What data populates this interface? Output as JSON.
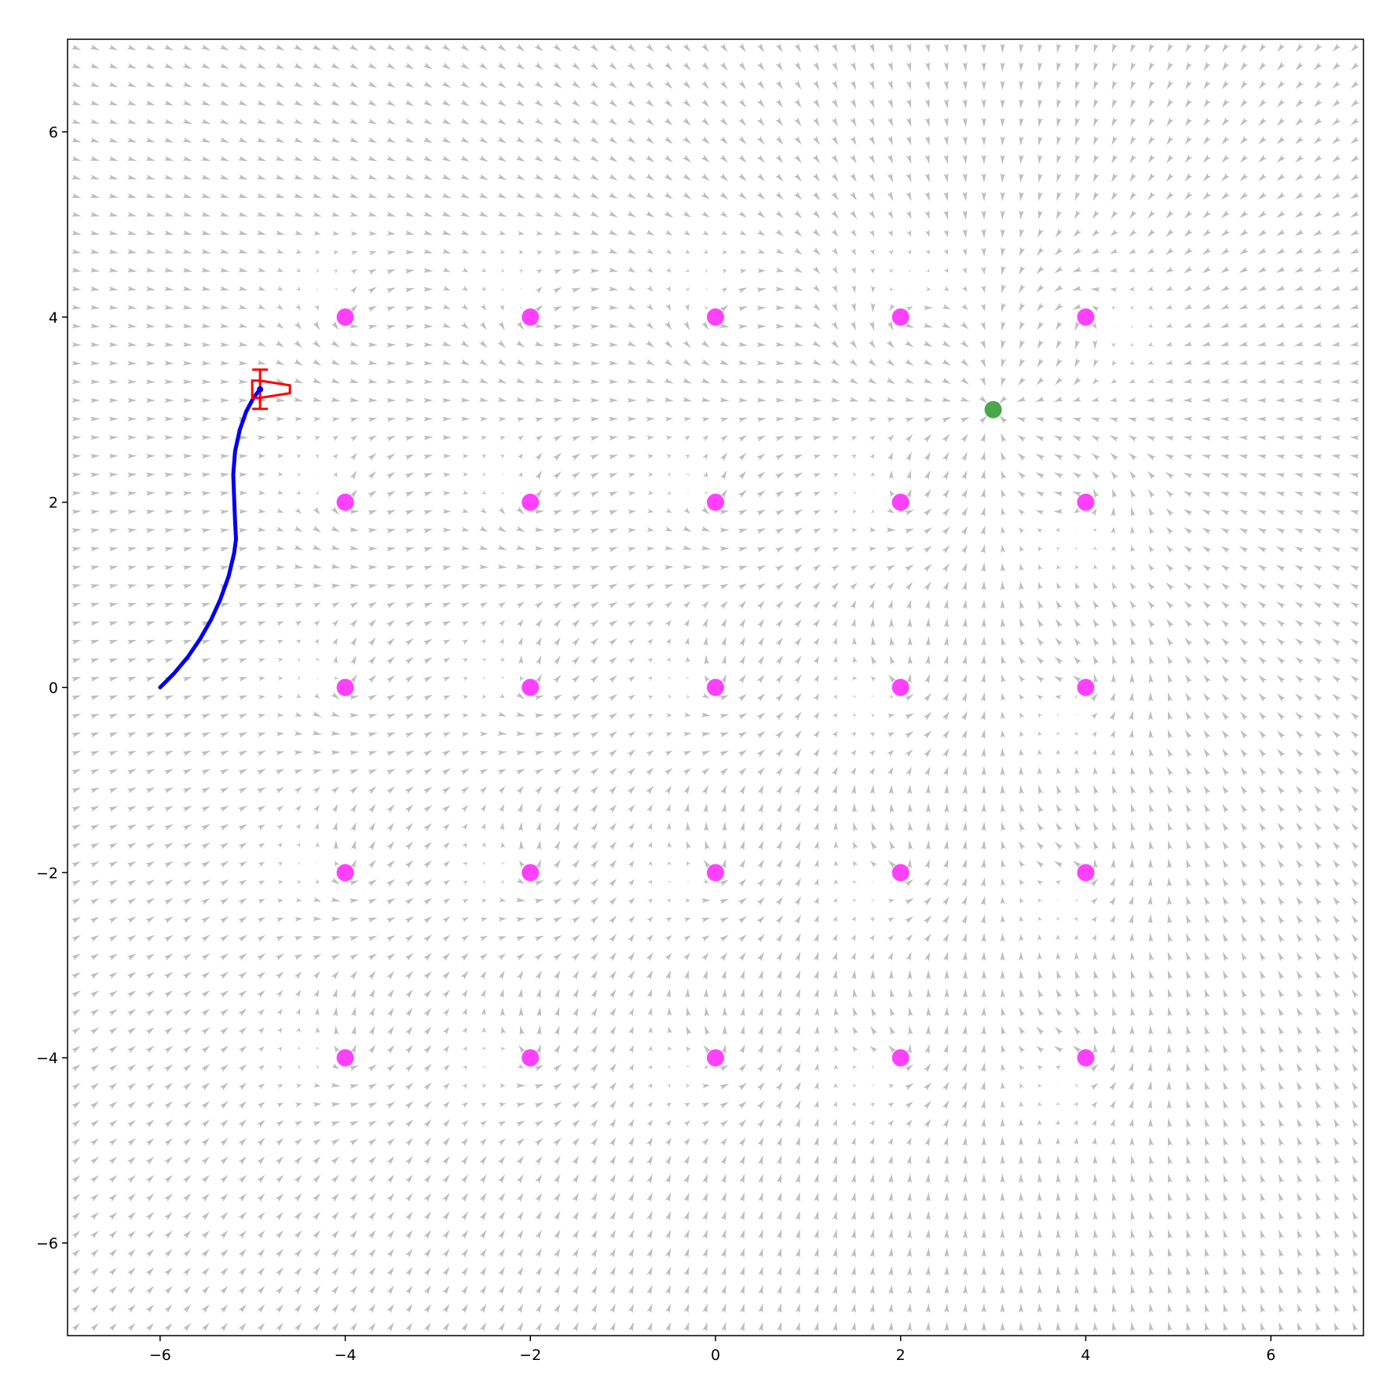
{
  "chart_data": {
    "type": "scatter",
    "title": "",
    "xlabel": "",
    "ylabel": "",
    "xlim": [
      -7,
      7
    ],
    "ylim": [
      -7,
      7
    ],
    "grid": false,
    "xticks": [
      -6,
      -4,
      -2,
      0,
      2,
      4,
      6
    ],
    "yticks": [
      -6,
      -4,
      -2,
      0,
      2,
      4,
      6
    ],
    "xtick_labels": [
      "−6",
      "−4",
      "−2",
      "0",
      "2",
      "4",
      "6"
    ],
    "ytick_labels": [
      "−6",
      "−4",
      "−2",
      "0",
      "2",
      "4",
      "6"
    ],
    "obstacles": {
      "color": "#ff40ff",
      "points": [
        [
          -4,
          4
        ],
        [
          -2,
          4
        ],
        [
          0,
          4
        ],
        [
          2,
          4
        ],
        [
          4,
          4
        ],
        [
          -4,
          2
        ],
        [
          -2,
          2
        ],
        [
          0,
          2
        ],
        [
          2,
          2
        ],
        [
          4,
          2
        ],
        [
          -4,
          0
        ],
        [
          -2,
          0
        ],
        [
          0,
          0
        ],
        [
          2,
          0
        ],
        [
          4,
          0
        ],
        [
          -4,
          -2
        ],
        [
          -2,
          -2
        ],
        [
          0,
          -2
        ],
        [
          2,
          -2
        ],
        [
          4,
          -2
        ],
        [
          -4,
          -4
        ],
        [
          -2,
          -4
        ],
        [
          0,
          -4
        ],
        [
          2,
          -4
        ],
        [
          4,
          -4
        ]
      ]
    },
    "goal": {
      "color": "#4ca64c",
      "point": [
        3,
        3
      ]
    },
    "trajectory": {
      "color": "#0000ee",
      "points": [
        [
          -6.0,
          0.0
        ],
        [
          -5.85,
          0.15
        ],
        [
          -5.7,
          0.33
        ],
        [
          -5.57,
          0.52
        ],
        [
          -5.45,
          0.73
        ],
        [
          -5.35,
          0.95
        ],
        [
          -5.26,
          1.2
        ],
        [
          -5.2,
          1.45
        ],
        [
          -5.18,
          1.6
        ],
        [
          -5.19,
          1.8
        ],
        [
          -5.2,
          2.05
        ],
        [
          -5.21,
          2.3
        ],
        [
          -5.19,
          2.55
        ],
        [
          -5.14,
          2.78
        ],
        [
          -5.07,
          2.98
        ],
        [
          -4.99,
          3.13
        ],
        [
          -4.92,
          3.22
        ]
      ]
    },
    "robot": {
      "color": "#ff0000",
      "position": [
        -4.92,
        3.22
      ],
      "heading": "right"
    },
    "vector_field": {
      "color": "#bebebe",
      "spacing": 0.2,
      "goal": [
        3,
        3
      ],
      "obstacles_ref": "obstacles"
    }
  }
}
